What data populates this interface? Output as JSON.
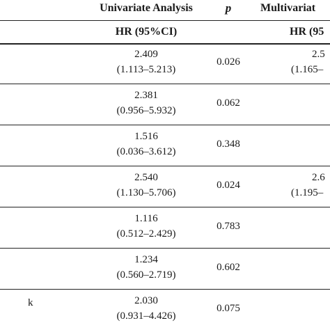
{
  "header": {
    "univariate": "Univariate Analysis",
    "p": "p",
    "multivariate": "Multivariat",
    "hr_ci": "HR (95%CI)",
    "hr_ci_mv": "HR (95"
  },
  "rows": [
    {
      "label": "",
      "hr": "2.409",
      "ci": "(1.113–5.213)",
      "p": "0.026",
      "mv_hr": "2.5",
      "mv_ci": "(1.165–"
    },
    {
      "label": "",
      "hr": "2.381",
      "ci": "(0.956–5.932)",
      "p": "0.062",
      "mv_hr": "",
      "mv_ci": ""
    },
    {
      "label": "",
      "hr": "1.516",
      "ci": "(0.036–3.612)",
      "p": "0.348",
      "mv_hr": "",
      "mv_ci": ""
    },
    {
      "label": "",
      "hr": "2.540",
      "ci": "(1.130–5.706)",
      "p": "0.024",
      "mv_hr": "2.6",
      "mv_ci": "(1.195–"
    },
    {
      "label": "",
      "hr": "1.116",
      "ci": "(0.512–2.429)",
      "p": "0.783",
      "mv_hr": "",
      "mv_ci": ""
    },
    {
      "label": "",
      "hr": "1.234",
      "ci": "(0.560–2.719)",
      "p": "0.602",
      "mv_hr": "",
      "mv_ci": ""
    },
    {
      "label": "k",
      "hr": "2.030",
      "ci": "(0.931–4.426)",
      "p": "0.075",
      "mv_hr": "",
      "mv_ci": ""
    }
  ]
}
